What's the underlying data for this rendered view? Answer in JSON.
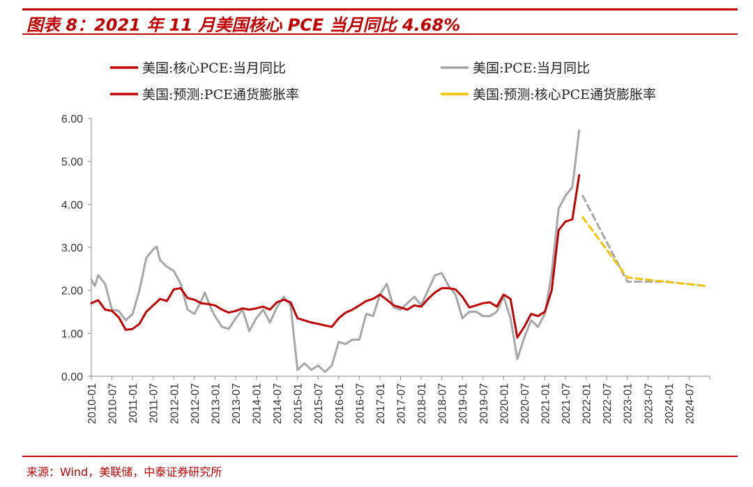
{
  "header": {
    "title": "图表 8：2021 年 11 月美国核心 PCE 当月同比 4.68%"
  },
  "footer": {
    "source": "来源：Wind，美联储，中泰证券研究所"
  },
  "colors": {
    "core_pce": "#c00000",
    "pce": "#a6a6a6",
    "forecast_pce": "#a6a6a6",
    "forecast_core_pce": "#f2c200",
    "accent": "#c00000"
  },
  "chart_data": {
    "type": "line",
    "title": "",
    "xlabel": "",
    "ylabel": "",
    "ylim": [
      0,
      6
    ],
    "yticks": [
      "0.00",
      "1.00",
      "2.00",
      "3.00",
      "4.00",
      "5.00",
      "6.00"
    ],
    "xlim": [
      "2010-01",
      "2025-01"
    ],
    "xticks": [
      "2010-01",
      "2010-07",
      "2011-01",
      "2011-07",
      "2012-01",
      "2012-07",
      "2013-01",
      "2013-07",
      "2014-01",
      "2014-07",
      "2015-01",
      "2015-07",
      "2016-01",
      "2016-07",
      "2017-01",
      "2017-07",
      "2018-01",
      "2018-07",
      "2019-01",
      "2019-07",
      "2020-01",
      "2020-07",
      "2021-01",
      "2021-07",
      "2022-01",
      "2022-07",
      "2023-01",
      "2023-07",
      "2024-01",
      "2024-07"
    ],
    "grid": false,
    "legend_position": "top",
    "series": [
      {
        "name": "美国:核心PCE:当月同比",
        "color": "#c00000",
        "style": "solid",
        "points": [
          [
            "2010-01",
            1.7
          ],
          [
            "2010-03",
            1.77
          ],
          [
            "2010-05",
            1.55
          ],
          [
            "2010-07",
            1.52
          ],
          [
            "2010-09",
            1.37
          ],
          [
            "2010-11",
            1.08
          ],
          [
            "2011-01",
            1.1
          ],
          [
            "2011-03",
            1.22
          ],
          [
            "2011-05",
            1.5
          ],
          [
            "2011-07",
            1.65
          ],
          [
            "2011-09",
            1.8
          ],
          [
            "2011-11",
            1.75
          ],
          [
            "2012-01",
            2.02
          ],
          [
            "2012-03",
            2.05
          ],
          [
            "2012-05",
            1.82
          ],
          [
            "2012-07",
            1.78
          ],
          [
            "2012-09",
            1.7
          ],
          [
            "2012-11",
            1.68
          ],
          [
            "2013-01",
            1.65
          ],
          [
            "2013-03",
            1.55
          ],
          [
            "2013-05",
            1.48
          ],
          [
            "2013-07",
            1.52
          ],
          [
            "2013-09",
            1.58
          ],
          [
            "2013-11",
            1.55
          ],
          [
            "2014-01",
            1.58
          ],
          [
            "2014-03",
            1.62
          ],
          [
            "2014-05",
            1.55
          ],
          [
            "2014-07",
            1.72
          ],
          [
            "2014-09",
            1.78
          ],
          [
            "2014-11",
            1.72
          ],
          [
            "2015-01",
            1.35
          ],
          [
            "2015-03",
            1.3
          ],
          [
            "2015-05",
            1.25
          ],
          [
            "2015-07",
            1.22
          ],
          [
            "2015-09",
            1.18
          ],
          [
            "2015-11",
            1.15
          ],
          [
            "2016-01",
            1.35
          ],
          [
            "2016-03",
            1.48
          ],
          [
            "2016-05",
            1.55
          ],
          [
            "2016-07",
            1.65
          ],
          [
            "2016-09",
            1.75
          ],
          [
            "2016-11",
            1.8
          ],
          [
            "2017-01",
            1.9
          ],
          [
            "2017-03",
            1.78
          ],
          [
            "2017-05",
            1.65
          ],
          [
            "2017-07",
            1.6
          ],
          [
            "2017-09",
            1.55
          ],
          [
            "2017-11",
            1.65
          ],
          [
            "2018-01",
            1.62
          ],
          [
            "2018-03",
            1.8
          ],
          [
            "2018-05",
            1.95
          ],
          [
            "2018-07",
            2.05
          ],
          [
            "2018-09",
            2.05
          ],
          [
            "2018-11",
            2.02
          ],
          [
            "2019-01",
            1.85
          ],
          [
            "2019-03",
            1.6
          ],
          [
            "2019-05",
            1.65
          ],
          [
            "2019-07",
            1.7
          ],
          [
            "2019-09",
            1.72
          ],
          [
            "2019-11",
            1.62
          ],
          [
            "2020-01",
            1.9
          ],
          [
            "2020-03",
            1.8
          ],
          [
            "2020-05",
            0.9
          ],
          [
            "2020-07",
            1.15
          ],
          [
            "2020-09",
            1.45
          ],
          [
            "2020-11",
            1.4
          ],
          [
            "2021-01",
            1.5
          ],
          [
            "2021-03",
            2.0
          ],
          [
            "2021-05",
            3.4
          ],
          [
            "2021-07",
            3.6
          ],
          [
            "2021-09",
            3.65
          ],
          [
            "2021-11",
            4.68
          ]
        ]
      },
      {
        "name": "美国:PCE:当月同比",
        "color": "#a6a6a6",
        "style": "solid",
        "points": [
          [
            "2010-01",
            2.25
          ],
          [
            "2010-02",
            2.1
          ],
          [
            "2010-03",
            2.35
          ],
          [
            "2010-05",
            2.15
          ],
          [
            "2010-07",
            1.55
          ],
          [
            "2010-09",
            1.52
          ],
          [
            "2010-11",
            1.3
          ],
          [
            "2011-01",
            1.45
          ],
          [
            "2011-03",
            2.0
          ],
          [
            "2011-05",
            2.75
          ],
          [
            "2011-07",
            2.95
          ],
          [
            "2011-08",
            3.02
          ],
          [
            "2011-09",
            2.7
          ],
          [
            "2011-11",
            2.55
          ],
          [
            "2012-01",
            2.45
          ],
          [
            "2012-03",
            2.15
          ],
          [
            "2012-05",
            1.55
          ],
          [
            "2012-07",
            1.45
          ],
          [
            "2012-09",
            1.75
          ],
          [
            "2012-10",
            1.95
          ],
          [
            "2012-12",
            1.55
          ],
          [
            "2013-01",
            1.4
          ],
          [
            "2013-03",
            1.15
          ],
          [
            "2013-05",
            1.1
          ],
          [
            "2013-07",
            1.35
          ],
          [
            "2013-09",
            1.55
          ],
          [
            "2013-11",
            1.05
          ],
          [
            "2014-01",
            1.35
          ],
          [
            "2014-03",
            1.55
          ],
          [
            "2014-05",
            1.25
          ],
          [
            "2014-07",
            1.6
          ],
          [
            "2014-09",
            1.85
          ],
          [
            "2014-11",
            1.65
          ],
          [
            "2015-01",
            0.15
          ],
          [
            "2015-03",
            0.3
          ],
          [
            "2015-05",
            0.15
          ],
          [
            "2015-07",
            0.25
          ],
          [
            "2015-09",
            0.1
          ],
          [
            "2015-11",
            0.25
          ],
          [
            "2016-01",
            0.8
          ],
          [
            "2016-03",
            0.75
          ],
          [
            "2016-05",
            0.85
          ],
          [
            "2016-07",
            0.85
          ],
          [
            "2016-09",
            1.45
          ],
          [
            "2016-11",
            1.4
          ],
          [
            "2017-01",
            1.9
          ],
          [
            "2017-03",
            2.15
          ],
          [
            "2017-05",
            1.6
          ],
          [
            "2017-07",
            1.55
          ],
          [
            "2017-09",
            1.7
          ],
          [
            "2017-11",
            1.85
          ],
          [
            "2018-01",
            1.65
          ],
          [
            "2018-03",
            2.0
          ],
          [
            "2018-05",
            2.35
          ],
          [
            "2018-07",
            2.4
          ],
          [
            "2018-09",
            2.1
          ],
          [
            "2018-11",
            1.9
          ],
          [
            "2019-01",
            1.35
          ],
          [
            "2019-03",
            1.5
          ],
          [
            "2019-05",
            1.5
          ],
          [
            "2019-07",
            1.4
          ],
          [
            "2019-09",
            1.4
          ],
          [
            "2019-11",
            1.5
          ],
          [
            "2020-01",
            1.85
          ],
          [
            "2020-03",
            1.35
          ],
          [
            "2020-05",
            0.4
          ],
          [
            "2020-07",
            0.9
          ],
          [
            "2020-09",
            1.3
          ],
          [
            "2020-11",
            1.15
          ],
          [
            "2021-01",
            1.45
          ],
          [
            "2021-03",
            2.4
          ],
          [
            "2021-05",
            3.9
          ],
          [
            "2021-07",
            4.2
          ],
          [
            "2021-09",
            4.4
          ],
          [
            "2021-11",
            5.72
          ]
        ]
      },
      {
        "name": "美国:预测:PCE通货膨胀率",
        "color": "#a6a6a6",
        "style": "dashed",
        "points": [
          [
            "2021-12",
            4.2
          ],
          [
            "2023-01",
            2.2
          ],
          [
            "2023-12",
            2.2
          ],
          [
            "2024-12",
            2.1
          ]
        ]
      },
      {
        "name": "美国:预测:核心PCE通货膨胀率",
        "color": "#f2c200",
        "style": "dashed",
        "points": [
          [
            "2021-12",
            3.7
          ],
          [
            "2023-01",
            2.3
          ],
          [
            "2023-12",
            2.2
          ],
          [
            "2024-12",
            2.1
          ]
        ]
      }
    ]
  },
  "legend": {
    "items": [
      {
        "label": "美国:核心PCE:当月同比",
        "color": "#c00000",
        "style": "solid"
      },
      {
        "label": "美国:PCE:当月同比",
        "color": "#a6a6a6",
        "style": "solid"
      },
      {
        "label": "美国:预测:PCE通货膨胀率",
        "color": "#c00000",
        "style": "solid"
      },
      {
        "label": "美国:预测:核心PCE通货膨胀率",
        "color": "#f2c200",
        "style": "solid"
      }
    ]
  }
}
